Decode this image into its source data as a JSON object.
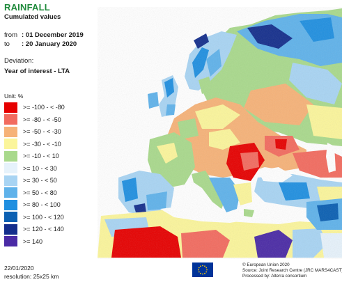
{
  "header": {
    "title": "RAINFALL",
    "subtitle": "Cumulated values",
    "from_label": "from",
    "from_value": ": 01 December 2019",
    "to_label": "to",
    "to_value": ": 20 January 2020",
    "deviation_label": "Deviation:",
    "deviation_value": "Year of interest - LTA"
  },
  "legend": {
    "unit": "Unit: %",
    "items": [
      {
        "label": ">= -100 - < -80",
        "color": "#e60000"
      },
      {
        "label": ">= -80 - < -50",
        "color": "#f26b5f"
      },
      {
        "label": ">= -50 - < -30",
        "color": "#f6b278"
      },
      {
        "label": ">= -30 - < -10",
        "color": "#fbf59b"
      },
      {
        "label": ">= -10 - < 10",
        "color": "#a9d98c"
      },
      {
        "label": ">= 10 - < 30",
        "color": "#e6f2fb"
      },
      {
        "label": ">= 30 - < 50",
        "color": "#a8d4f3"
      },
      {
        "label": ">= 50 - < 80",
        "color": "#5fb2ea"
      },
      {
        "label": ">= 80 - < 100",
        "color": "#1f8fe0"
      },
      {
        "label": ">= 100 - < 120",
        "color": "#0a5fb2"
      },
      {
        "label": ">= 120 - < 140",
        "color": "#142e8c"
      },
      {
        "label": ">= 140",
        "color": "#4a2aa5"
      }
    ]
  },
  "footer": {
    "date": "22/01/2020",
    "resolution": "resolution: 25x25 km",
    "credit_1": "© European Union 2020",
    "credit_2": "Source: Joint Research Centre (JRC MARS4CAST)",
    "credit_3": "Processed by: Alterra consortium"
  },
  "colors": {
    "title": "#1f8a3b",
    "sea": "#ffffff",
    "eu_blue": "#003399",
    "eu_yellow": "#ffcc00"
  },
  "icons": {
    "eu_flag": "eu-flag-icon"
  }
}
